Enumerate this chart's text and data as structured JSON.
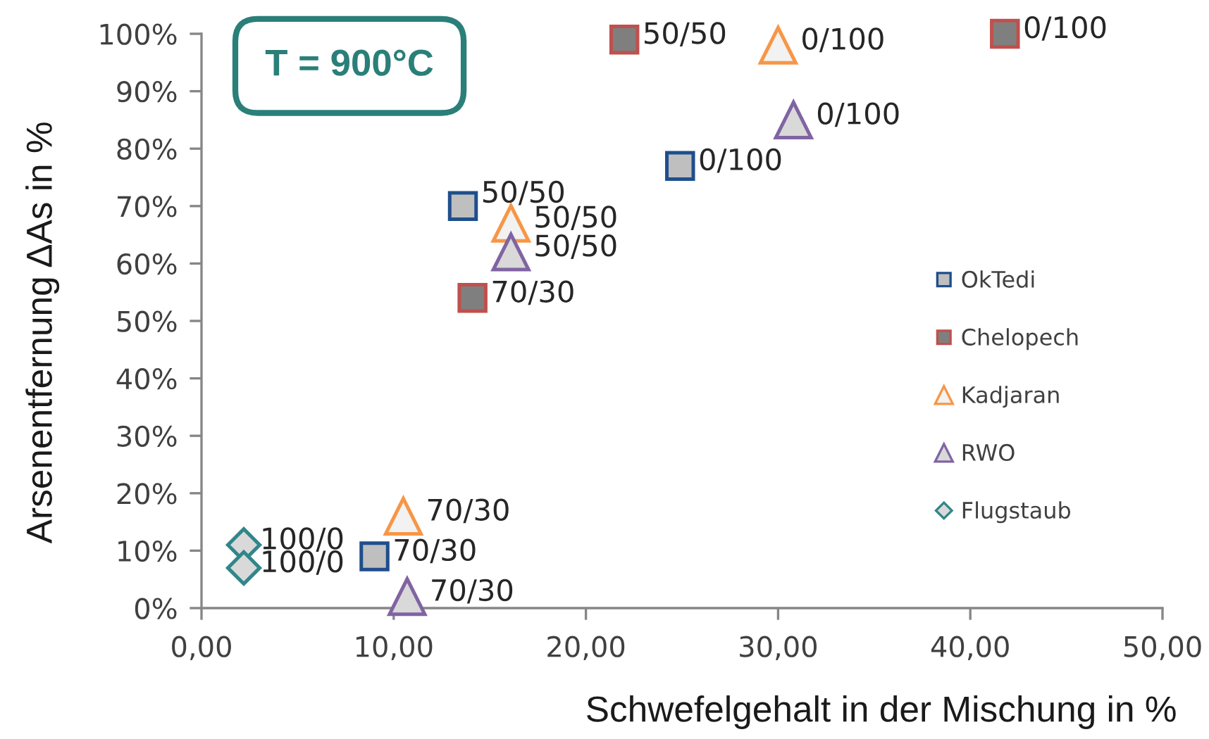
{
  "chart_data": {
    "type": "scatter",
    "xlabel": "Schwefelgehalt in der Mischung in %",
    "ylabel": "Arsenentfernung ΔAs in %",
    "annotations": [
      "T = 900°C"
    ],
    "xlim": [
      0,
      50
    ],
    "ylim": [
      0,
      100
    ],
    "xticks": [
      {
        "value": 0,
        "label": "0,00"
      },
      {
        "value": 10,
        "label": "10,00"
      },
      {
        "value": 20,
        "label": "20,00"
      },
      {
        "value": 30,
        "label": "30,00"
      },
      {
        "value": 40,
        "label": "40,00"
      },
      {
        "value": 50,
        "label": "50,00"
      }
    ],
    "yticks": [
      {
        "value": 0,
        "label": "0%"
      },
      {
        "value": 10,
        "label": "10%"
      },
      {
        "value": 20,
        "label": "20%"
      },
      {
        "value": 30,
        "label": "30%"
      },
      {
        "value": 40,
        "label": "40%"
      },
      {
        "value": 50,
        "label": "50%"
      },
      {
        "value": 60,
        "label": "60%"
      },
      {
        "value": 70,
        "label": "70%"
      },
      {
        "value": 80,
        "label": "80%"
      },
      {
        "value": 90,
        "label": "90%"
      },
      {
        "value": 100,
        "label": "100%"
      }
    ],
    "grid": false,
    "legend": "right",
    "series": [
      {
        "name": "OkTedi",
        "color": "#1f4e8c",
        "marker": "square",
        "x": [
          9.0,
          13.6,
          24.9
        ],
        "values": [
          9,
          70,
          77
        ],
        "value_labels": [
          "70/30",
          "50/50",
          "0/100"
        ]
      },
      {
        "name": "Chelopech",
        "color": "#c0504d",
        "marker": "square",
        "x": [
          14.1,
          22.0,
          41.8
        ],
        "values": [
          54,
          99,
          100
        ],
        "value_labels": [
          "70/30",
          "50/50",
          "0/100"
        ]
      },
      {
        "name": "Kadjaran",
        "color": "#f79646",
        "marker": "triangle",
        "x": [
          10.5,
          16.1,
          30.0
        ],
        "values": [
          16,
          67,
          98
        ],
        "value_labels": [
          "70/30",
          "50/50",
          "0/100"
        ]
      },
      {
        "name": "RWO",
        "color": "#8064a2",
        "marker": "triangle",
        "x": [
          10.7,
          16.1,
          30.8
        ],
        "values": [
          2,
          62,
          85
        ],
        "value_labels": [
          "70/30",
          "50/50",
          "0/100"
        ]
      },
      {
        "name": "Flugstaub",
        "color": "#31868a",
        "marker": "diamond",
        "x": [
          2.2,
          2.2
        ],
        "values": [
          11,
          7
        ],
        "value_labels": [
          "100/0",
          "100/0"
        ]
      }
    ]
  }
}
